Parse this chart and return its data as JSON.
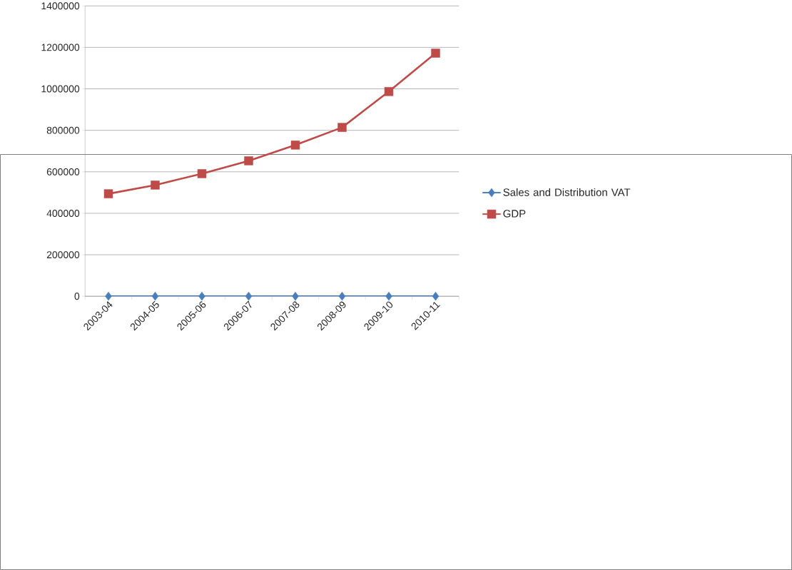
{
  "chart_data": {
    "type": "line",
    "categories": [
      "2003-04",
      "2004-05",
      "2005-06",
      "2006-07",
      "2007-08",
      "2008-09",
      "2009-10",
      "2010-11"
    ],
    "series": [
      {
        "name": "Sales and Distribution VAT",
        "color": "#4a7ebb",
        "marker": "diamond",
        "values": [
          0,
          0,
          0,
          0,
          0,
          0,
          0,
          0
        ]
      },
      {
        "name": "GDP",
        "color": "#be4b48",
        "marker": "square",
        "values": [
          494000,
          536000,
          591000,
          653000,
          729000,
          814000,
          987000,
          1172000
        ]
      }
    ],
    "ylim": [
      0,
      1400000
    ],
    "yticks": [
      0,
      200000,
      400000,
      600000,
      800000,
      1000000,
      1200000,
      1400000
    ],
    "grid": "y",
    "legend": "right"
  }
}
